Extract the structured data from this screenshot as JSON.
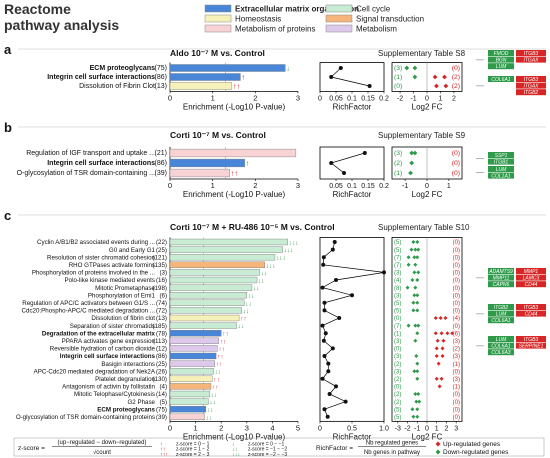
{
  "title": "Reactome pathway analysis",
  "legend_categories": [
    {
      "label": "Extracellular matrix organization",
      "color": "#4a86d8",
      "bold": true
    },
    {
      "label": "Cell cycle",
      "color": "#c8ecd3"
    },
    {
      "label": "Homeostasis",
      "color": "#f5f1b8"
    },
    {
      "label": "Signal transduction",
      "color": "#f6b67b"
    },
    {
      "label": "Metabolism of proteins",
      "color": "#f8d3d6"
    },
    {
      "label": "Metabolism",
      "color": "#ddc9ec"
    }
  ],
  "axis_labels": {
    "enrichment": "Enrichment (-Log10 P-value)",
    "richfactor": "RichFactor",
    "log2fc": "Log2 FC"
  },
  "panels": [
    {
      "letter": "a",
      "heading": "Aldo 10⁻⁷ M vs. Control",
      "supp": "Supplementary Table S8",
      "enr_ticks": [
        "0",
        "1",
        "2",
        "3"
      ],
      "enr_max": 3,
      "rf_ticks": [
        "0",
        "0.05",
        "0.1",
        "0.15",
        "0.2"
      ],
      "rf_max": 0.2,
      "fc_ticks": [
        "-2",
        "-1",
        "0",
        "1",
        "2"
      ],
      "fc_min": -2.6,
      "fc_max": 2.6,
      "rows": [
        {
          "label": "ECM proteoglycans",
          "n": "(75)",
          "bold": true,
          "value": 2.7,
          "cat": 0,
          "arrows": "↓",
          "arrow_color": "#2e9a4a",
          "rf": 0.065,
          "down": "(3)",
          "up": "(0)",
          "dn_fc": [
            -1.5,
            -0.9
          ],
          "up_fc": []
        },
        {
          "label": "Integrin cell surface interactions",
          "n": "(86)",
          "bold": true,
          "value": 1.65,
          "cat": 0,
          "arrows": "↑",
          "arrow_color": "#d62626",
          "rf": 0.035,
          "down": "(1)",
          "up": "(2)",
          "dn_fc": [
            -0.9
          ],
          "up_fc": [
            0.6,
            1.3
          ]
        },
        {
          "label": "Dissolution of Fibrin Clot",
          "n": "(13)",
          "bold": false,
          "value": 1.45,
          "cat": 2,
          "arrows": "↑↑",
          "arrow_color": "#d62626",
          "rf": 0.155,
          "down": "(0)",
          "up": "(2)",
          "dn_fc": [],
          "up_fc": [
            0.7,
            1.4
          ]
        }
      ],
      "gene_groups": [
        {
          "down": [
            "FMOD",
            "BGN",
            "LUM"
          ],
          "up": [
            "ITGB3",
            "ITGAX"
          ]
        },
        {
          "down": [
            "COL6A1"
          ],
          "up": [
            "ITGB3",
            "ITGAX",
            "ITGB2"
          ]
        }
      ]
    },
    {
      "letter": "b",
      "heading": "Corti 10⁻⁷ M vs. Control",
      "supp": "Supplementary Table S9",
      "enr_ticks": [
        "0",
        "1",
        "2",
        "3"
      ],
      "enr_max": 3,
      "rf_ticks": [
        "0.05",
        "0.1",
        "0.15",
        "0.2"
      ],
      "rf_max": 0.2,
      "fc_ticks": [
        "-1",
        "0",
        "1"
      ],
      "fc_min": -1.6,
      "fc_max": 1.6,
      "rows": [
        {
          "label": "Regulation of IGF transport and uptake ...",
          "n": "(21)",
          "bold": false,
          "value": 2.95,
          "cat": 4,
          "arrows": "",
          "arrow_color": "#d62626",
          "rf": 0.14,
          "down": "(3)",
          "up": "(0)",
          "dn_fc": [
            -0.7,
            -0.55
          ],
          "up_fc": []
        },
        {
          "label": "Integrin cell surface interactions",
          "n": "(86)",
          "bold": true,
          "value": 1.75,
          "cat": 0,
          "arrows": "↑",
          "arrow_color": "#2e9a4a",
          "rf": 0.035,
          "down": "(2)",
          "up": "(0)",
          "dn_fc": [
            -0.7
          ],
          "up_fc": []
        },
        {
          "label": "O-glycosylation of TSR domain-containing ...",
          "n": "(39)",
          "bold": false,
          "value": 1.4,
          "cat": 4,
          "arrows": "↑↑",
          "arrow_color": "#d62626",
          "rf": 0.075,
          "down": "(1)",
          "up": "(0)",
          "dn_fc": [
            -0.75
          ],
          "up_fc": []
        }
      ],
      "gene_groups": [
        {
          "down": [
            "SSP1",
            "ITGB1"
          ],
          "up": []
        },
        {
          "down": [
            "LUM",
            "COL1A1"
          ],
          "up": []
        }
      ]
    },
    {
      "letter": "c",
      "heading": "Corti 10⁻⁷ M + RU-486 10⁻⁵ M vs. Control",
      "supp": "Supplementary Table S10",
      "enr_ticks": [
        "0",
        "1",
        "2",
        "3",
        "4",
        "5"
      ],
      "enr_max": 5,
      "rf_ticks": [
        "0",
        "0.5",
        "1.0"
      ],
      "rf_max": 1.0,
      "fc_ticks": [
        "-3",
        "-2",
        "-1",
        "0",
        "1",
        "2",
        "3"
      ],
      "fc_min": -3.6,
      "fc_max": 3.6,
      "rows": [
        {
          "label": "Cyclin A/B1/B2 associated events during ...",
          "n": "(22)",
          "bold": false,
          "value": 4.6,
          "cat": 1,
          "arrows": "↓↓↓",
          "arrow_color": "#2e9a4a",
          "rf": 0.23,
          "down": "(5)",
          "up": "(0)",
          "dn_fc": [
            -1.4,
            -1.0
          ],
          "up_fc": []
        },
        {
          "label": "G0 and Early G1",
          "n": "(25)",
          "bold": false,
          "value": 4.4,
          "cat": 1,
          "arrows": "↓↓↓",
          "arrow_color": "#2e9a4a",
          "rf": 0.2,
          "down": "(5)",
          "up": "(0)",
          "dn_fc": [
            -1.6,
            -1.2,
            -0.9
          ],
          "up_fc": []
        },
        {
          "label": "Resolution of sister chromatid cohesion",
          "n": "(121)",
          "bold": false,
          "value": 4.1,
          "cat": 1,
          "arrows": "↓↓↓",
          "arrow_color": "#2e9a4a",
          "rf": 0.06,
          "down": "(7)",
          "up": "(0)",
          "dn_fc": [
            -1.9,
            -1.3,
            -1.0
          ],
          "up_fc": []
        },
        {
          "label": "RHO GTPases activate formins",
          "n": "(135)",
          "bold": false,
          "value": 3.7,
          "cat": 3,
          "arrows": "↓↓↓",
          "arrow_color": "#2e9a4a",
          "rf": 0.05,
          "down": "(7)",
          "up": "(0)",
          "dn_fc": [
            -1.9,
            -1.2
          ],
          "up_fc": []
        },
        {
          "label": "Phosphorylation of proteins involved in the ...",
          "n": "(3)",
          "bold": false,
          "value": 3.5,
          "cat": 1,
          "arrows": "↓↓",
          "arrow_color": "#2e9a4a",
          "rf": 1.0,
          "down": "(3)",
          "up": "(0)",
          "dn_fc": [
            -1.3,
            -0.9
          ],
          "up_fc": []
        },
        {
          "label": "Polo-like kinase mediated events",
          "n": "(16)",
          "bold": false,
          "value": 3.4,
          "cat": 1,
          "arrows": "↓↓",
          "arrow_color": "#2e9a4a",
          "rf": 0.25,
          "down": "(4)",
          "up": "(0)",
          "dn_fc": [
            -1.5,
            -1.0
          ],
          "up_fc": []
        },
        {
          "label": "Mitotic Prometaphase",
          "n": "(198)",
          "bold": false,
          "value": 3.2,
          "cat": 1,
          "arrows": "↓↓",
          "arrow_color": "#2e9a4a",
          "rf": 0.04,
          "down": "(8)",
          "up": "(0)",
          "dn_fc": [
            -2.0,
            -1.2
          ],
          "up_fc": []
        },
        {
          "label": "Phosphorylation of Emi1",
          "n": "(6)",
          "bold": false,
          "value": 3.0,
          "cat": 1,
          "arrows": "↓↓",
          "arrow_color": "#2e9a4a",
          "rf": 0.5,
          "down": "(3)",
          "up": "(0)",
          "dn_fc": [
            -1.3,
            -1.0
          ],
          "up_fc": []
        },
        {
          "label": "Regulation of APC/C activators between G1/S ...",
          "n": "(74)",
          "bold": false,
          "value": 2.9,
          "cat": 1,
          "arrows": "↓↓",
          "arrow_color": "#2e9a4a",
          "rf": 0.07,
          "down": "(5)",
          "up": "(0)",
          "dn_fc": [
            -1.4,
            -1.0
          ],
          "up_fc": []
        },
        {
          "label": "Cdc20:Phospho-APC/C mediated degradation ...",
          "n": "(72)",
          "bold": false,
          "value": 2.8,
          "cat": 1,
          "arrows": "↓↓",
          "arrow_color": "#2e9a4a",
          "rf": 0.07,
          "down": "(5)",
          "up": "(0)",
          "dn_fc": [
            -1.4,
            -1.0
          ],
          "up_fc": []
        },
        {
          "label": "Dissolution of fibrin clot",
          "n": "(13)",
          "bold": false,
          "value": 2.7,
          "cat": 2,
          "arrows": "↑↑",
          "arrow_color": "#d62626",
          "rf": 0.3,
          "down": "(0)",
          "up": "(4)",
          "dn_fc": [],
          "up_fc": [
            0.9,
            1.4,
            1.9
          ]
        },
        {
          "label": "Separation of sister chromatids",
          "n": "(185)",
          "bold": false,
          "value": 2.6,
          "cat": 1,
          "arrows": "↓↓",
          "arrow_color": "#2e9a4a",
          "rf": 0.04,
          "down": "(7)",
          "up": "(0)",
          "dn_fc": [
            -1.9,
            -1.2,
            -0.9
          ],
          "up_fc": []
        },
        {
          "label": "Degradation of the extracellular matrix",
          "n": "(78)",
          "bold": true,
          "value": 2.0,
          "cat": 0,
          "arrows": "↑↑",
          "arrow_color": "#d62626",
          "rf": 0.09,
          "down": "(1)",
          "up": "(6)",
          "dn_fc": [
            -1.0
          ],
          "up_fc": [
            0.9,
            1.5,
            2.1,
            2.6
          ]
        },
        {
          "label": "PPARA activates gene expression",
          "n": "(113)",
          "bold": false,
          "value": 1.9,
          "cat": 5,
          "arrows": "↑↑",
          "arrow_color": "#d62626",
          "rf": 0.06,
          "down": "(3)",
          "up": "(3)",
          "dn_fc": [
            -1.2
          ],
          "up_fc": [
            1.1,
            1.7
          ]
        },
        {
          "label": "Reversible hydration of carbon dioxide",
          "n": "(12)",
          "bold": false,
          "value": 1.85,
          "cat": 5,
          "arrows": "↑↑",
          "arrow_color": "#d62626",
          "rf": 0.2,
          "down": "(0)",
          "up": "(2)",
          "dn_fc": [],
          "up_fc": [
            1.0,
            1.6
          ]
        },
        {
          "label": "Integrin cell surface interactions",
          "n": "(86)",
          "bold": true,
          "value": 1.8,
          "cat": 0,
          "arrows": "↑↑",
          "arrow_color": "#d62626",
          "rf": 0.07,
          "down": "(3)",
          "up": "(3)",
          "dn_fc": [
            -1.1
          ],
          "up_fc": [
            1.0,
            1.6
          ]
        },
        {
          "label": "Basigin interactions",
          "n": "(25)",
          "bold": false,
          "value": 1.75,
          "cat": 5,
          "arrows": "↑↑",
          "arrow_color": "#d62626",
          "rf": 0.13,
          "down": "(2)",
          "up": "(1)",
          "dn_fc": [
            -1.0
          ],
          "up_fc": [
            1.2
          ]
        },
        {
          "label": "APC-Cdc20 mediated degradation of Nek2A",
          "n": "(26)",
          "bold": false,
          "value": 1.7,
          "cat": 1,
          "arrows": "↓↓",
          "arrow_color": "#2e9a4a",
          "rf": 0.13,
          "down": "(3)",
          "up": "(0)",
          "dn_fc": [
            -1.3,
            -1.0
          ],
          "up_fc": []
        },
        {
          "label": "Platelet degranulation",
          "n": "(130)",
          "bold": false,
          "value": 1.65,
          "cat": 2,
          "arrows": "↑↑",
          "arrow_color": "#d62626",
          "rf": 0.04,
          "down": "(2)",
          "up": "(3)",
          "dn_fc": [
            -1.0
          ],
          "up_fc": [
            1.0,
            1.5
          ]
        },
        {
          "label": "Antagonism of activin by follistatin",
          "n": "(4)",
          "bold": false,
          "value": 1.6,
          "cat": 3,
          "arrows": "↑↑",
          "arrow_color": "#d62626",
          "rf": 0.25,
          "down": "(0)",
          "up": "(1)",
          "dn_fc": [],
          "up_fc": [
            1.3
          ]
        },
        {
          "label": "Mitotic Telophase/Cytokinesis",
          "n": "(14)",
          "bold": false,
          "value": 1.55,
          "cat": 1,
          "arrows": "↓↓",
          "arrow_color": "#2e9a4a",
          "rf": 0.15,
          "down": "(2)",
          "up": "(0)",
          "dn_fc": [
            -1.2,
            -0.9
          ],
          "up_fc": []
        },
        {
          "label": "G2 Phase",
          "n": "(5)",
          "bold": false,
          "value": 1.5,
          "cat": 1,
          "arrows": "↓↓",
          "arrow_color": "#2e9a4a",
          "rf": 0.4,
          "down": "(2)",
          "up": "(0)",
          "dn_fc": [
            -1.1,
            -0.8
          ],
          "up_fc": []
        },
        {
          "label": "ECM proteoglycans",
          "n": "(75)",
          "bold": true,
          "value": 1.4,
          "cat": 0,
          "arrows": "↓↓",
          "arrow_color": "#2e9a4a",
          "rf": 0.07,
          "down": "(5)",
          "up": "(0)",
          "dn_fc": [
            -1.5,
            -1.0
          ],
          "up_fc": []
        },
        {
          "label": "O-glycosylation of TSR domain-containing proteins",
          "n": "(39)",
          "bold": false,
          "value": 1.35,
          "cat": 4,
          "arrows": "↓↓",
          "arrow_color": "#2e9a4a",
          "rf": 0.12,
          "down": "(5)",
          "up": "(0)",
          "dn_fc": [
            -1.4,
            -1.0
          ],
          "up_fc": []
        }
      ],
      "gene_groups": [
        {
          "down": [
            "ADAMTS9",
            "MMP11",
            "CAPN6"
          ],
          "up": [
            "MMP1",
            "LAMC3",
            "CD44"
          ]
        },
        {
          "down": [
            "ITGB2",
            "LUM",
            "COL6A1"
          ],
          "up": [
            "ITGB3",
            "CD44"
          ]
        },
        {
          "down": [
            "LUM",
            "COL6A1",
            "COL6A3"
          ],
          "up": [
            "ITGB3",
            "SERPINE1"
          ]
        }
      ]
    }
  ],
  "footer": {
    "zscore_label": "z-score =",
    "zscore_num": "(up−regulated − down−regulated)",
    "zscore_den": "√count",
    "z_up": [
      "z-score = 0 − 1",
      "z-score = 1 − 2",
      "z-score = 2 − 3"
    ],
    "z_down": [
      "z-score = 0 − −1",
      "z-score = −1 − −2",
      "z-score = −2 − −3"
    ],
    "rf_label": "RichFactor =",
    "rf_num": "Nb regulated genes",
    "rf_den": "Nb genes in pathway",
    "up_genes": "Up-regulated genes",
    "down_genes": "Down-regulated genes"
  },
  "colors": {
    "up": "#d62626",
    "down": "#2e9a4a",
    "line": "#000000",
    "grid": "#999999"
  }
}
